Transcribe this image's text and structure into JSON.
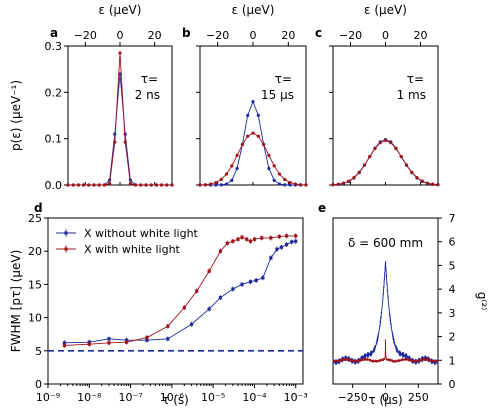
{
  "colors": {
    "blue": "#1f2a9c",
    "red": "#a0141c",
    "dashed": "#1f2a9c",
    "axis": "#000000"
  },
  "chart_data": [
    {
      "panel": "a",
      "type": "line",
      "xlabel": "ε (μeV)",
      "ylabel": "p(ε) (μeV⁻¹)",
      "xlim": [
        -30,
        30
      ],
      "ylim": [
        0,
        0.3
      ],
      "xticks": [
        "−20",
        "0",
        "20"
      ],
      "yticks": [
        "0.0",
        "0.1",
        "0.2",
        "0.3"
      ],
      "annotation": [
        "τ=",
        "2 ns"
      ],
      "series": [
        {
          "color": "blue",
          "width": 2.4,
          "peak": 0.24
        },
        {
          "color": "red",
          "width": 2.0,
          "peak": 0.285
        }
      ]
    },
    {
      "panel": "b",
      "type": "line",
      "xlabel": "ε (μeV)",
      "xlim": [
        -30,
        30
      ],
      "ylim": [
        0,
        0.3
      ],
      "xticks": [
        "−20",
        "0",
        "20"
      ],
      "annotation": [
        "τ=",
        "15 μs"
      ],
      "series": [
        {
          "color": "blue",
          "width": 5.0,
          "peak": 0.18
        },
        {
          "color": "red",
          "width": 8.5,
          "peak": 0.112
        }
      ]
    },
    {
      "panel": "c",
      "type": "line",
      "xlabel": "ε (μeV)",
      "xlim": [
        -30,
        30
      ],
      "ylim": [
        0,
        0.3
      ],
      "xticks": [
        "−20",
        "0",
        "20"
      ],
      "annotation": [
        "τ=",
        "1 ms"
      ],
      "series": [
        {
          "color": "blue",
          "width": 9.3,
          "peak": 0.098
        },
        {
          "color": "red",
          "width": 9.5,
          "peak": 0.096
        }
      ]
    },
    {
      "panel": "d",
      "type": "line",
      "xscale": "log",
      "xlabel": "τ (s)",
      "ylabel": "FWHM [pτ] (μeV)",
      "xlim": [
        1e-09,
        0.0015
      ],
      "ylim": [
        0,
        25
      ],
      "xticks": [
        "10⁻⁹",
        "10⁻⁸",
        "10⁻⁷",
        "10⁻⁶",
        "10⁻⁵",
        "10⁻⁴",
        "10⁻³"
      ],
      "yticks": [
        "0",
        "5",
        "10",
        "15",
        "20",
        "25"
      ],
      "legend": [
        "X without white light",
        "X with white light"
      ],
      "legend_position": "top-left",
      "reference_line": 5.0,
      "series": [
        {
          "name": "X without white light",
          "color": "blue",
          "x": [
            2.5e-09,
            1e-08,
            3e-08,
            8e-08,
            2.5e-07,
            8e-07,
            3e-06,
            8e-06,
            1.5e-05,
            3e-05,
            5e-05,
            8e-05,
            0.00011,
            0.00016,
            0.00025,
            0.00035,
            0.00045,
            0.0006,
            0.0008,
            0.001
          ],
          "y": [
            6.2,
            6.3,
            6.8,
            6.6,
            6.6,
            6.8,
            9.0,
            11.3,
            13.0,
            14.3,
            15.0,
            15.4,
            15.6,
            16.0,
            19.0,
            20.3,
            20.6,
            21.0,
            21.4,
            21.5
          ]
        },
        {
          "name": "X with white light",
          "color": "red",
          "x": [
            2.5e-09,
            1e-08,
            3e-08,
            8e-08,
            2.5e-07,
            8e-07,
            2e-06,
            4e-06,
            8e-06,
            1.5e-05,
            2.2e-05,
            3e-05,
            4e-05,
            5e-05,
            6.5e-05,
            8e-05,
            0.0001,
            0.00015,
            0.00025,
            0.0004,
            0.0006,
            0.001
          ],
          "y": [
            5.8,
            6.0,
            6.2,
            6.3,
            7.0,
            8.7,
            11.5,
            14.0,
            17.0,
            20.0,
            21.2,
            21.5,
            21.8,
            22.1,
            21.8,
            21.5,
            21.8,
            22.0,
            22.0,
            22.2,
            22.3,
            22.3
          ]
        }
      ]
    },
    {
      "panel": "e",
      "type": "line",
      "xlabel": "τ (μs)",
      "ylabel": "g⁽²⁾",
      "xlim": [
        -400,
        400
      ],
      "ylim": [
        0,
        7
      ],
      "xticks": [
        "−250",
        "0",
        "250"
      ],
      "yticks": [
        "0",
        "1",
        "2",
        "3",
        "4",
        "5",
        "6",
        "7"
      ],
      "annotation": "δ = 600 mm",
      "series": [
        {
          "color": "blue",
          "baseline": 1.0,
          "amplitude": 4.1,
          "decay": 42
        },
        {
          "color": "red",
          "baseline": 1.0,
          "amplitude": 0.8,
          "decay": 1.5
        }
      ]
    }
  ]
}
